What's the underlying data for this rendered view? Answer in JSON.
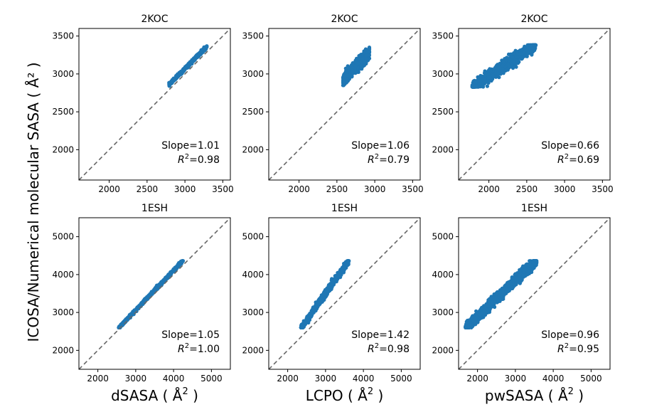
{
  "figure": {
    "ylabel": "ICOSA/Numerical molecular SASA ( Å² )",
    "point_color": "#1f77b4",
    "diagonal_color": "#666666"
  },
  "chart_data": [
    {
      "type": "scatter",
      "title": "2KOC",
      "xlabel": "",
      "xlim": [
        1600,
        3600
      ],
      "ylim": [
        1600,
        3600
      ],
      "xticks": [
        2000,
        2500,
        3000,
        3500
      ],
      "yticks": [
        2000,
        2500,
        3000,
        3500
      ],
      "annotation": {
        "slope": "Slope=1.01",
        "r2_value": "=0.98"
      },
      "cloud": {
        "x_range": [
          2790,
          3290
        ],
        "y_range": [
          2840,
          3380
        ],
        "slope": 1.01,
        "spread": 18,
        "n": 500
      }
    },
    {
      "type": "scatter",
      "title": "2KOC",
      "xlabel": "",
      "xlim": [
        1600,
        3600
      ],
      "ylim": [
        1600,
        3600
      ],
      "xticks": [
        2000,
        2500,
        3000,
        3500
      ],
      "yticks": [
        2000,
        2500,
        3000,
        3500
      ],
      "annotation": {
        "slope": "Slope=1.06",
        "r2_value": "=0.79"
      },
      "cloud": {
        "x_range": [
          2580,
          2930
        ],
        "y_range": [
          2850,
          3350
        ],
        "slope": 1.06,
        "spread": 70,
        "n": 900
      }
    },
    {
      "type": "scatter",
      "title": "2KOC",
      "xlabel": "",
      "xlim": [
        1600,
        3600
      ],
      "ylim": [
        1600,
        3600
      ],
      "xticks": [
        2000,
        2500,
        3000,
        3500
      ],
      "yticks": [
        2000,
        2500,
        3000,
        3500
      ],
      "annotation": {
        "slope": "Slope=0.66",
        "r2_value": "=0.69"
      },
      "cloud": {
        "x_range": [
          1780,
          2620
        ],
        "y_range": [
          2830,
          3380
        ],
        "slope": 0.66,
        "spread": 65,
        "n": 1200
      }
    },
    {
      "type": "scatter",
      "title": "1ESH",
      "xlabel": "dSASA",
      "xlim": [
        1500,
        5500
      ],
      "ylim": [
        1500,
        5500
      ],
      "xticks": [
        2000,
        3000,
        4000,
        5000
      ],
      "yticks": [
        2000,
        3000,
        4000,
        5000
      ],
      "annotation": {
        "slope": "Slope=1.05",
        "r2_value": "=1.00"
      },
      "cloud": {
        "x_range": [
          2550,
          4250
        ],
        "y_range": [
          2600,
          4360
        ],
        "slope": 1.05,
        "spread": 35,
        "n": 700
      }
    },
    {
      "type": "scatter",
      "title": "1ESH",
      "xlabel": "LCPO",
      "xlim": [
        1500,
        5500
      ],
      "ylim": [
        1500,
        5500
      ],
      "xticks": [
        2000,
        3000,
        4000,
        5000
      ],
      "yticks": [
        2000,
        3000,
        4000,
        5000
      ],
      "annotation": {
        "slope": "Slope=1.42",
        "r2_value": "=0.98"
      },
      "cloud": {
        "x_range": [
          2350,
          3620
        ],
        "y_range": [
          2600,
          4360
        ],
        "slope": 1.42,
        "spread": 75,
        "n": 900
      }
    },
    {
      "type": "scatter",
      "title": "1ESH",
      "xlabel": "pwSASA",
      "xlim": [
        1500,
        5500
      ],
      "ylim": [
        1500,
        5500
      ],
      "xticks": [
        2000,
        3000,
        4000,
        5000
      ],
      "yticks": [
        2000,
        3000,
        4000,
        5000
      ],
      "annotation": {
        "slope": "Slope=0.96",
        "r2_value": "=0.95"
      },
      "cloud": {
        "x_range": [
          1680,
          3560
        ],
        "y_range": [
          2600,
          4360
        ],
        "slope": 0.96,
        "spread": 120,
        "n": 1400
      }
    }
  ],
  "units": {
    "open": " ( Å",
    "close": " )",
    "sup": "2"
  },
  "r2_symbol": "R",
  "r2_sup": "2"
}
